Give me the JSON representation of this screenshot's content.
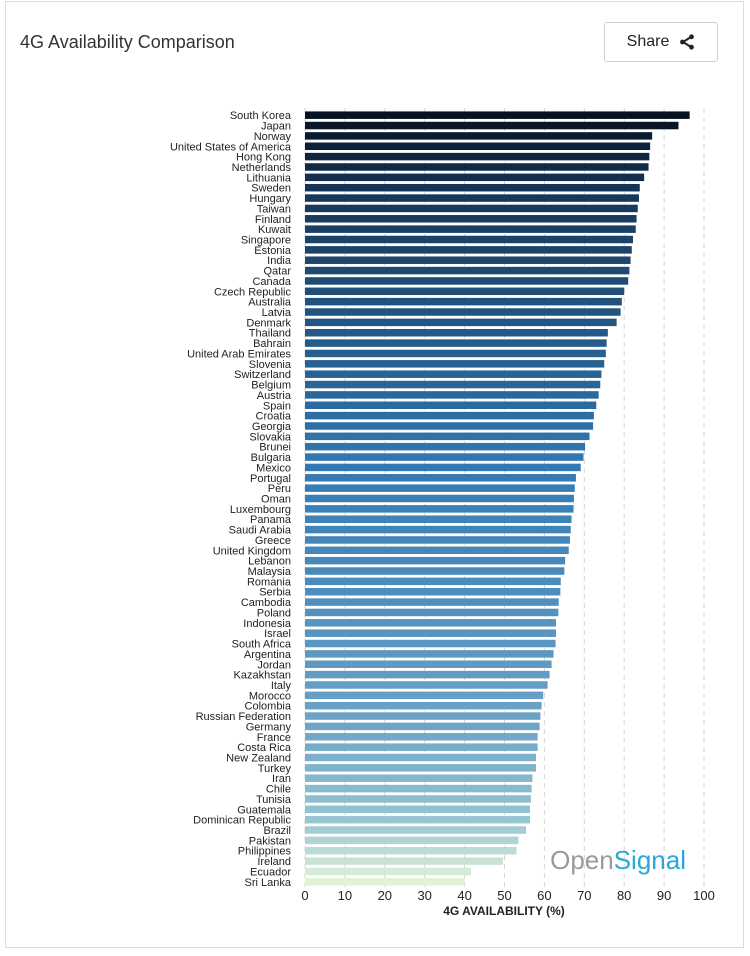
{
  "header": {
    "title": "4G Availability Comparison",
    "share_label": "Share"
  },
  "brand": {
    "open": "Open",
    "signal": "Signal"
  },
  "chart_data": {
    "type": "bar",
    "orientation": "horizontal",
    "xlabel": "4G AVAILABILITY (%)",
    "ylabel": "",
    "xlim": [
      0,
      100
    ],
    "xticks": [
      0,
      10,
      20,
      30,
      40,
      50,
      60,
      70,
      80,
      90,
      100
    ],
    "grid": "vertical dashed",
    "categories": [
      "South Korea",
      "Japan",
      "Norway",
      "United States of America",
      "Hong Kong",
      "Netherlands",
      "Lithuania",
      "Sweden",
      "Hungary",
      "Taiwan",
      "Finland",
      "Kuwait",
      "Singapore",
      "Estonia",
      "India",
      "Qatar",
      "Canada",
      "Czech Republic",
      "Australia",
      "Latvia",
      "Denmark",
      "Thailand",
      "Bahrain",
      "United Arab Emirates",
      "Slovenia",
      "Switzerland",
      "Belgium",
      "Austria",
      "Spain",
      "Croatia",
      "Georgia",
      "Slovakia",
      "Brunei",
      "Bulgaria",
      "Mexico",
      "Portugal",
      "Peru",
      "Oman",
      "Luxembourg",
      "Panama",
      "Saudi Arabia",
      "Greece",
      "United Kingdom",
      "Lebanon",
      "Malaysia",
      "Romania",
      "Serbia",
      "Cambodia",
      "Poland",
      "Indonesia",
      "Israel",
      "South Africa",
      "Argentina",
      "Jordan",
      "Kazakhstan",
      "Italy",
      "Morocco",
      "Colombia",
      "Russian Federation",
      "Germany",
      "France",
      "Costa Rica",
      "New Zealand",
      "Turkey",
      "Iran",
      "Chile",
      "Tunisia",
      "Guatemala",
      "Dominican Republic",
      "Brazil",
      "Pakistan",
      "Philippines",
      "Ireland",
      "Ecuador",
      "Sri Lanka"
    ],
    "values": [
      96.4,
      93.6,
      87.0,
      86.5,
      86.3,
      86.1,
      85.0,
      83.9,
      83.7,
      83.4,
      83.1,
      82.9,
      82.2,
      81.9,
      81.6,
      81.3,
      81.0,
      80.0,
      79.4,
      79.1,
      78.1,
      75.9,
      75.6,
      75.4,
      75.0,
      74.3,
      74.0,
      73.6,
      73.0,
      72.4,
      72.2,
      71.3,
      70.2,
      69.8,
      69.1,
      67.9,
      67.6,
      67.4,
      67.3,
      66.8,
      66.6,
      66.4,
      66.1,
      65.2,
      65.0,
      64.1,
      64.0,
      63.6,
      63.5,
      62.9,
      62.9,
      62.8,
      62.3,
      61.8,
      61.3,
      60.8,
      59.7,
      59.3,
      59.0,
      58.8,
      58.3,
      58.3,
      57.9,
      57.9,
      57.0,
      56.8,
      56.6,
      56.4,
      56.4,
      55.4,
      53.5,
      53.0,
      49.6,
      41.6,
      40.0
    ]
  }
}
